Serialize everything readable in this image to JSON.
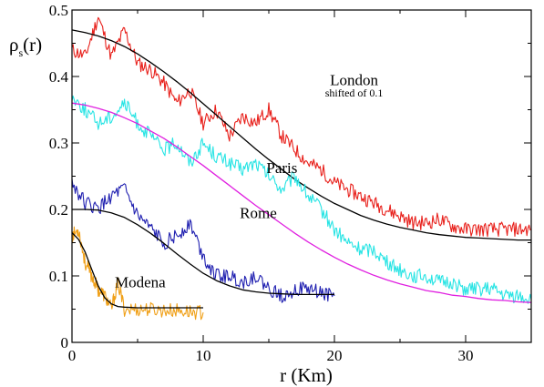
{
  "chart_data": {
    "type": "line",
    "xlabel": "r (Km)",
    "ylabel": "ρ",
    "ylabel_sub": "s",
    "ylabel_suffix": "(r)",
    "xlim": [
      0,
      35
    ],
    "ylim": [
      0,
      0.5
    ],
    "x_ticks": [
      0,
      10,
      20,
      30
    ],
    "y_ticks": [
      0,
      0.1,
      0.2,
      0.3,
      0.4,
      0.5
    ],
    "y_tick_labels": [
      "0",
      "0.1",
      "0.2",
      "0.3",
      "0.4",
      "0.5"
    ],
    "grid": false,
    "legend": "none",
    "annotations": [
      {
        "text": "London",
        "x": 21.5,
        "y": 0.387,
        "size": "normal"
      },
      {
        "text": "shifted of 0.1",
        "x": 21.5,
        "y": 0.37,
        "size": "small"
      },
      {
        "text": "Paris",
        "x": 16,
        "y": 0.255,
        "size": "normal"
      },
      {
        "text": "Rome",
        "x": 14.2,
        "y": 0.187,
        "size": "normal"
      },
      {
        "text": "Modena",
        "x": 5.2,
        "y": 0.083,
        "size": "normal"
      }
    ],
    "series": [
      {
        "color": "#e8201b",
        "kind": "data",
        "x": [
          0,
          1,
          2,
          3,
          4,
          5,
          6,
          7,
          8,
          9,
          10,
          11,
          12,
          13,
          14,
          15,
          16,
          17,
          18,
          19,
          20,
          21,
          22,
          23,
          24,
          25,
          26,
          27,
          28,
          29,
          30,
          31,
          32,
          33,
          34,
          35
        ],
        "y": [
          0.44,
          0.43,
          0.49,
          0.43,
          0.47,
          0.42,
          0.41,
          0.39,
          0.36,
          0.38,
          0.33,
          0.35,
          0.31,
          0.34,
          0.33,
          0.35,
          0.31,
          0.29,
          0.27,
          0.26,
          0.24,
          0.23,
          0.22,
          0.21,
          0.2,
          0.19,
          0.18,
          0.18,
          0.185,
          0.175,
          0.17,
          0.17,
          0.17,
          0.17,
          0.17,
          0.17
        ]
      },
      {
        "color": "#000000",
        "kind": "fit",
        "x": [
          0,
          1,
          2,
          3,
          4,
          5,
          6,
          7,
          8,
          9,
          10,
          11,
          12,
          13,
          14,
          15,
          16,
          17,
          18,
          19,
          20,
          21,
          22,
          23,
          24,
          25,
          26,
          27,
          28,
          29,
          30,
          31,
          32,
          33,
          34,
          35
        ],
        "y": [
          0.47,
          0.466,
          0.461,
          0.454,
          0.445,
          0.434,
          0.421,
          0.407,
          0.392,
          0.376,
          0.359,
          0.342,
          0.325,
          0.308,
          0.291,
          0.275,
          0.26,
          0.245,
          0.232,
          0.22,
          0.209,
          0.2,
          0.191,
          0.184,
          0.178,
          0.173,
          0.169,
          0.165,
          0.162,
          0.16,
          0.158,
          0.157,
          0.156,
          0.155,
          0.154,
          0.154
        ]
      },
      {
        "color": "#27e4e4",
        "kind": "data",
        "x": [
          0,
          1,
          2,
          3,
          4,
          5,
          6,
          7,
          8,
          9,
          10,
          11,
          12,
          13,
          14,
          15,
          16,
          17,
          18,
          19,
          20,
          21,
          22,
          23,
          24,
          25,
          26,
          27,
          28,
          29,
          30,
          31,
          32,
          33,
          34,
          35
        ],
        "y": [
          0.37,
          0.35,
          0.33,
          0.34,
          0.36,
          0.33,
          0.31,
          0.29,
          0.3,
          0.27,
          0.3,
          0.28,
          0.27,
          0.26,
          0.27,
          0.25,
          0.23,
          0.25,
          0.22,
          0.2,
          0.17,
          0.15,
          0.14,
          0.14,
          0.12,
          0.11,
          0.1,
          0.1,
          0.09,
          0.09,
          0.08,
          0.08,
          0.08,
          0.07,
          0.07,
          0.065
        ]
      },
      {
        "color": "#e020e0",
        "kind": "fit",
        "x": [
          0,
          1,
          2,
          3,
          4,
          5,
          6,
          7,
          8,
          9,
          10,
          11,
          12,
          13,
          14,
          15,
          16,
          17,
          18,
          19,
          20,
          21,
          22,
          23,
          24,
          25,
          26,
          27,
          28,
          29,
          30,
          31,
          32,
          33,
          34,
          35
        ],
        "y": [
          0.36,
          0.357,
          0.352,
          0.346,
          0.338,
          0.329,
          0.318,
          0.307,
          0.294,
          0.28,
          0.266,
          0.251,
          0.236,
          0.221,
          0.206,
          0.192,
          0.178,
          0.164,
          0.151,
          0.139,
          0.128,
          0.118,
          0.109,
          0.101,
          0.094,
          0.088,
          0.083,
          0.078,
          0.075,
          0.071,
          0.069,
          0.066,
          0.064,
          0.063,
          0.061,
          0.06
        ]
      },
      {
        "color": "#1f1fb0",
        "kind": "data",
        "x": [
          0,
          1,
          2,
          3,
          4,
          5,
          6,
          7,
          8,
          9,
          10,
          11,
          12,
          13,
          14,
          15,
          16,
          17,
          18,
          19,
          20
        ],
        "y": [
          0.24,
          0.21,
          0.2,
          0.22,
          0.23,
          0.19,
          0.17,
          0.15,
          0.16,
          0.18,
          0.13,
          0.1,
          0.1,
          0.09,
          0.1,
          0.08,
          0.07,
          0.08,
          0.08,
          0.075,
          0.07
        ]
      },
      {
        "color": "#000000",
        "kind": "fit",
        "x": [
          0,
          1,
          2,
          3,
          4,
          5,
          6,
          7,
          8,
          9,
          10,
          11,
          12,
          13,
          14,
          15,
          16,
          17,
          18,
          19,
          20
        ],
        "y": [
          0.2,
          0.2,
          0.199,
          0.195,
          0.188,
          0.177,
          0.164,
          0.149,
          0.133,
          0.118,
          0.104,
          0.093,
          0.085,
          0.079,
          0.076,
          0.074,
          0.073,
          0.072,
          0.072,
          0.072,
          0.072
        ]
      },
      {
        "color": "#f0a018",
        "kind": "data",
        "x": [
          0,
          0.5,
          1,
          1.5,
          2,
          2.5,
          3,
          3.5,
          4,
          5,
          6,
          7,
          8,
          9,
          10
        ],
        "y": [
          0.16,
          0.17,
          0.12,
          0.1,
          0.08,
          0.07,
          0.05,
          0.09,
          0.05,
          0.05,
          0.05,
          0.048,
          0.048,
          0.046,
          0.045
        ]
      },
      {
        "color": "#000000",
        "kind": "fit",
        "x": [
          0,
          0.5,
          1,
          1.5,
          2,
          2.5,
          3,
          3.5,
          4,
          5,
          6,
          7,
          8,
          9,
          10
        ],
        "y": [
          0.165,
          0.155,
          0.136,
          0.11,
          0.085,
          0.067,
          0.058,
          0.054,
          0.053,
          0.052,
          0.052,
          0.052,
          0.052,
          0.052,
          0.052
        ]
      }
    ]
  }
}
